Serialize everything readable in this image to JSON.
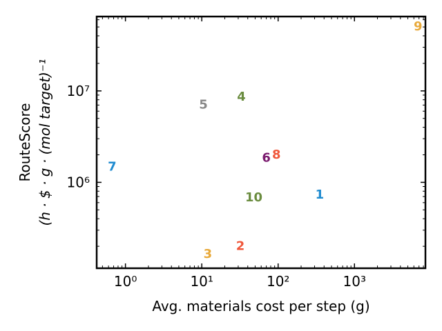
{
  "chart_data": {
    "type": "scatter",
    "xscale": "log",
    "yscale": "log",
    "xlabel": "Avg. materials cost per step (g)",
    "ylabel_line1": "RouteScore",
    "ylabel_line2": "(h · $ · g · (mol target)⁻¹",
    "xlim": [
      0.42,
      8500
    ],
    "ylim": [
      115000,
      65000000
    ],
    "grid": false,
    "x_ticks": [
      {
        "value": 1,
        "label": "10⁰"
      },
      {
        "value": 10,
        "label": "10¹"
      },
      {
        "value": 100,
        "label": "10²"
      },
      {
        "value": 1000,
        "label": "10³"
      }
    ],
    "y_ticks": [
      {
        "value": 1000000,
        "label": "10⁶"
      },
      {
        "value": 10000000,
        "label": "10⁷"
      }
    ],
    "points": [
      {
        "label": "1",
        "x": 350,
        "y": 750000,
        "color": "#1f8bd0"
      },
      {
        "label": "2",
        "x": 32,
        "y": 205000,
        "color": "#f0563a"
      },
      {
        "label": "3",
        "x": 12,
        "y": 168000,
        "color": "#e8a93a"
      },
      {
        "label": "4",
        "x": 33,
        "y": 8800000,
        "color": "#6a8c3f"
      },
      {
        "label": "5",
        "x": 10.5,
        "y": 7200000,
        "color": "#888888"
      },
      {
        "label": "6",
        "x": 70,
        "y": 1900000,
        "color": "#7a1a6e"
      },
      {
        "label": "7",
        "x": 0.67,
        "y": 1520000,
        "color": "#1f8bd0"
      },
      {
        "label": "8",
        "x": 95,
        "y": 2050000,
        "color": "#f0563a"
      },
      {
        "label": "9",
        "x": 6800,
        "y": 52000000,
        "color": "#e8a93a"
      },
      {
        "label": "10",
        "x": 48,
        "y": 700000,
        "color": "#6a8c3f"
      }
    ]
  }
}
